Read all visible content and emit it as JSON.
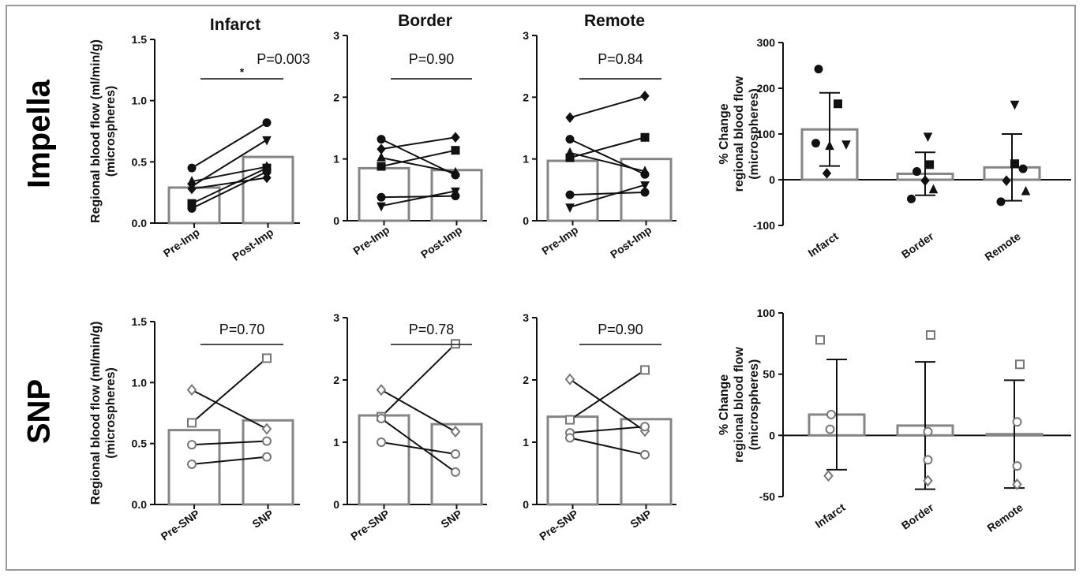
{
  "row_labels": [
    "Impella",
    "SNP"
  ],
  "colors": {
    "bar_stroke": "#858585",
    "line": "#111111",
    "axis": "#111111",
    "open_marker": "#777777"
  },
  "chart_data": [
    {
      "id": "impella-infarct",
      "type": "bar",
      "title": "Infarct",
      "ylabel": "Regional blood flow (ml/min/g)",
      "ylabel2": "(microspheres)",
      "ylim": [
        0,
        1.5
      ],
      "yticks": [
        "0.0",
        "0.5",
        "1.0",
        "1.5"
      ],
      "categories": [
        "Pre-Imp",
        "Post-Imp"
      ],
      "values": [
        0.29,
        0.54
      ],
      "pvalue": "P=0.003",
      "star": "*",
      "pairs": [
        {
          "marker": "circle",
          "values": [
            0.45,
            0.82
          ]
        },
        {
          "marker": "triangle-down",
          "values": [
            0.3,
            0.68
          ]
        },
        {
          "marker": "triangle",
          "values": [
            0.34,
            0.46
          ]
        },
        {
          "marker": "diamond",
          "values": [
            0.28,
            0.37
          ]
        },
        {
          "marker": "square",
          "values": [
            0.16,
            0.45
          ]
        },
        {
          "marker": "circle",
          "values": [
            0.12,
            0.42
          ]
        }
      ]
    },
    {
      "id": "impella-border",
      "type": "bar",
      "title": "Border",
      "ylim": [
        0,
        3
      ],
      "yticks": [
        "0",
        "1",
        "2",
        "3"
      ],
      "categories": [
        "Pre-Imp",
        "Post-Imp"
      ],
      "values": [
        0.85,
        0.82
      ],
      "pvalue": "P=0.90",
      "pairs": [
        {
          "marker": "circle",
          "values": [
            1.32,
            0.74
          ]
        },
        {
          "marker": "diamond",
          "values": [
            1.16,
            1.35
          ]
        },
        {
          "marker": "triangle",
          "values": [
            1.02,
            0.78
          ]
        },
        {
          "marker": "square",
          "values": [
            0.88,
            1.14
          ]
        },
        {
          "marker": "circle",
          "values": [
            0.38,
            0.4
          ]
        },
        {
          "marker": "triangle-down",
          "values": [
            0.24,
            0.48
          ]
        }
      ]
    },
    {
      "id": "impella-remote",
      "type": "bar",
      "title": "Remote",
      "ylim": [
        0,
        3
      ],
      "yticks": [
        "0",
        "1",
        "2",
        "3"
      ],
      "categories": [
        "Pre-Imp",
        "Post-Imp"
      ],
      "values": [
        0.97,
        1.0
      ],
      "pvalue": "P=0.84",
      "pairs": [
        {
          "marker": "diamond",
          "values": [
            1.67,
            2.02
          ]
        },
        {
          "marker": "circle",
          "values": [
            1.32,
            0.75
          ]
        },
        {
          "marker": "triangle",
          "values": [
            1.1,
            0.8
          ]
        },
        {
          "marker": "square",
          "values": [
            1.02,
            1.35
          ]
        },
        {
          "marker": "circle",
          "values": [
            0.42,
            0.46
          ]
        },
        {
          "marker": "triangle-down",
          "values": [
            0.22,
            0.58
          ]
        }
      ]
    },
    {
      "id": "impella-change",
      "type": "bar",
      "ylabel": "% Change",
      "ylabel2": "regional blood flow",
      "ylabel3": "(microspheres)",
      "ylim": [
        -100,
        300
      ],
      "yticks": [
        "-100",
        "0",
        "100",
        "200",
        "300"
      ],
      "categories": [
        "Infarct",
        "Border",
        "Remote"
      ],
      "values": [
        110,
        13,
        27
      ],
      "sd": [
        80,
        47,
        73
      ],
      "points": [
        [
          {
            "marker": "circle",
            "dx": -0.2,
            "v": 242
          },
          {
            "marker": "square",
            "dx": 0.15,
            "v": 166
          },
          {
            "marker": "circle",
            "dx": -0.25,
            "v": 80
          },
          {
            "marker": "triangle",
            "dx": 0.0,
            "v": 73
          },
          {
            "marker": "triangle-down",
            "dx": 0.3,
            "v": 78
          },
          {
            "marker": "diamond",
            "dx": -0.05,
            "v": 14
          }
        ],
        [
          {
            "marker": "triangle-down",
            "dx": 0.05,
            "v": 95
          },
          {
            "marker": "square",
            "dx": 0.08,
            "v": 33
          },
          {
            "marker": "circle",
            "dx": -0.15,
            "v": 18
          },
          {
            "marker": "diamond",
            "dx": 0.0,
            "v": -2
          },
          {
            "marker": "triangle",
            "dx": 0.15,
            "v": -22
          },
          {
            "marker": "circle",
            "dx": -0.25,
            "v": -42
          }
        ],
        [
          {
            "marker": "triangle-down",
            "dx": 0.05,
            "v": 165
          },
          {
            "marker": "square",
            "dx": 0.05,
            "v": 35
          },
          {
            "marker": "circle",
            "dx": 0.2,
            "v": 24
          },
          {
            "marker": "diamond",
            "dx": -0.1,
            "v": -2
          },
          {
            "marker": "triangle",
            "dx": 0.25,
            "v": -26
          },
          {
            "marker": "circle",
            "dx": -0.2,
            "v": -48
          }
        ]
      ]
    },
    {
      "id": "snp-infarct",
      "type": "bar",
      "ylabel": "Regional blood flow (ml/min/g)",
      "ylabel2": "(microspheres)",
      "ylim": [
        0,
        1.5
      ],
      "yticks": [
        "0.0",
        "0.5",
        "1.0",
        "1.5"
      ],
      "categories": [
        "Pre-SNP",
        "SNP"
      ],
      "values": [
        0.61,
        0.69
      ],
      "pvalue": "P=0.70",
      "pairs": [
        {
          "marker": "diamond-open",
          "values": [
            0.94,
            0.62
          ]
        },
        {
          "marker": "square-open",
          "values": [
            0.67,
            1.2
          ]
        },
        {
          "marker": "circle-open",
          "values": [
            0.49,
            0.52
          ]
        },
        {
          "marker": "circle-open",
          "values": [
            0.33,
            0.39
          ]
        }
      ]
    },
    {
      "id": "snp-border",
      "type": "bar",
      "ylim": [
        0,
        3
      ],
      "yticks": [
        "0",
        "1",
        "2",
        "3"
      ],
      "categories": [
        "Pre-SNP",
        "SNP"
      ],
      "values": [
        1.43,
        1.29
      ],
      "pvalue": "P=0.78",
      "pairs": [
        {
          "marker": "diamond-open",
          "values": [
            1.84,
            1.17
          ]
        },
        {
          "marker": "square-open",
          "values": [
            1.41,
            2.58
          ]
        },
        {
          "marker": "circle-open",
          "values": [
            1.38,
            0.52
          ]
        },
        {
          "marker": "circle-open",
          "values": [
            1.0,
            0.81
          ]
        }
      ]
    },
    {
      "id": "snp-remote",
      "type": "bar",
      "ylim": [
        0,
        3
      ],
      "yticks": [
        "0",
        "1",
        "2",
        "3"
      ],
      "categories": [
        "Pre-SNP",
        "SNP"
      ],
      "values": [
        1.41,
        1.37
      ],
      "pvalue": "P=0.90",
      "pairs": [
        {
          "marker": "diamond-open",
          "values": [
            2.01,
            1.18
          ]
        },
        {
          "marker": "square-open",
          "values": [
            1.36,
            2.16
          ]
        },
        {
          "marker": "circle-open",
          "values": [
            1.15,
            1.25
          ]
        },
        {
          "marker": "circle-open",
          "values": [
            1.07,
            0.8
          ]
        }
      ]
    },
    {
      "id": "snp-change",
      "type": "bar",
      "ylabel": "% Change",
      "ylabel2": "regional blood flow",
      "ylabel3": "(microspheres)",
      "ylim": [
        -50,
        100
      ],
      "yticks": [
        "-50",
        "0",
        "50",
        "100"
      ],
      "categories": [
        "Infarct",
        "Border",
        "Remote"
      ],
      "values": [
        17,
        8,
        1
      ],
      "sd": [
        45,
        52,
        44
      ],
      "points": [
        [
          {
            "marker": "square-open",
            "dx": -0.3,
            "v": 78
          },
          {
            "marker": "circle-open",
            "dx": -0.1,
            "v": 17
          },
          {
            "marker": "circle-open",
            "dx": -0.12,
            "v": 5
          },
          {
            "marker": "diamond-open",
            "dx": -0.15,
            "v": -33
          }
        ],
        [
          {
            "marker": "square-open",
            "dx": 0.1,
            "v": 82
          },
          {
            "marker": "circle-open",
            "dx": 0.05,
            "v": 3
          },
          {
            "marker": "circle-open",
            "dx": 0.05,
            "v": -20
          },
          {
            "marker": "diamond-open",
            "dx": 0.05,
            "v": -37
          }
        ],
        [
          {
            "marker": "square-open",
            "dx": 0.1,
            "v": 58
          },
          {
            "marker": "circle-open",
            "dx": 0.05,
            "v": 11
          },
          {
            "marker": "circle-open",
            "dx": 0.05,
            "v": -25
          },
          {
            "marker": "diamond-open",
            "dx": 0.05,
            "v": -40
          }
        ]
      ]
    }
  ]
}
